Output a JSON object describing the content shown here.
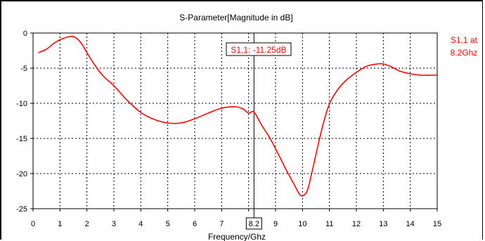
{
  "chart_data": {
    "type": "line",
    "title": "S-Parameter[Magnitude in dB]",
    "xlabel": "Frequency/Ghz",
    "ylabel": "",
    "xlim": [
      0,
      15
    ],
    "ylim": [
      -25,
      0
    ],
    "x_ticks": [
      "0",
      "1",
      "2",
      "3",
      "4",
      "5",
      "6",
      "7",
      "8",
      "9",
      "10",
      "11",
      "12",
      "13",
      "14",
      "15"
    ],
    "y_ticks": [
      "0",
      "-5",
      "-10",
      "-15",
      "-20",
      "-25"
    ],
    "grid": true,
    "series": [
      {
        "name": "S1,1 at 8.2Ghz",
        "color": "#ff0000",
        "x": [
          0.2,
          0.5,
          0.8,
          1.1,
          1.4,
          1.6,
          1.8,
          2.0,
          2.3,
          2.6,
          3.0,
          3.5,
          4.0,
          4.5,
          5.0,
          5.5,
          6.0,
          6.5,
          7.0,
          7.5,
          7.8,
          8.0,
          8.2,
          8.5,
          8.8,
          9.1,
          9.4,
          9.7,
          9.9,
          10.05,
          10.2,
          10.4,
          10.6,
          10.8,
          11.0,
          11.3,
          11.6,
          12.0,
          12.4,
          12.8,
          13.0,
          13.3,
          13.6,
          14.0,
          14.4,
          14.8,
          15.0
        ],
        "y": [
          -2.8,
          -2.3,
          -1.4,
          -0.8,
          -0.5,
          -0.7,
          -1.5,
          -2.8,
          -4.6,
          -6.1,
          -7.5,
          -9.6,
          -11.3,
          -12.3,
          -12.8,
          -12.8,
          -12.2,
          -11.4,
          -10.7,
          -10.5,
          -10.8,
          -11.4,
          -11.25,
          -13.2,
          -15.0,
          -17.2,
          -19.5,
          -21.6,
          -23.0,
          -23.1,
          -22.2,
          -19.0,
          -15.6,
          -12.5,
          -10.1,
          -8.1,
          -6.8,
          -5.6,
          -4.7,
          -4.4,
          -4.4,
          -4.8,
          -5.4,
          -5.8,
          -6.0,
          -6.0,
          -6.0
        ]
      }
    ],
    "marker": {
      "x": 8.2,
      "x_label": "8.2",
      "readout": "S1,1: -11.25dB"
    },
    "legend": {
      "line1": "S1,1 at",
      "line2": "8.2Ghz",
      "placement": "right"
    }
  }
}
